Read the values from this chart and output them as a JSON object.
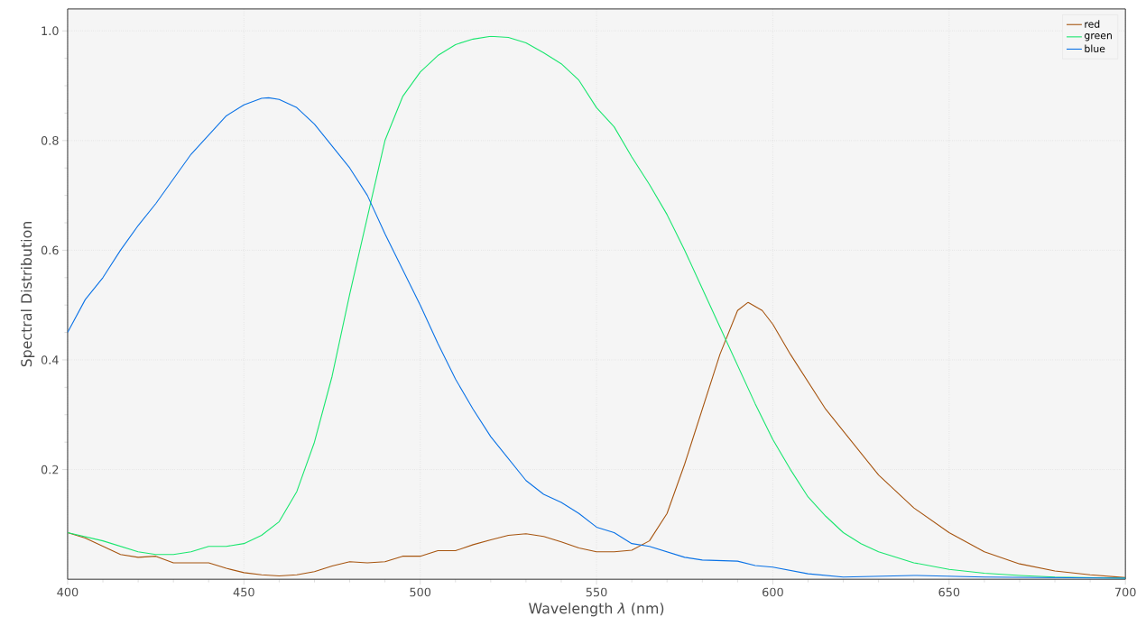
{
  "chart_data": {
    "type": "line",
    "xlabel": "Wavelength *λ* (nm)",
    "ylabel": "Spectral Distribution",
    "xlim": [
      400,
      700
    ],
    "ylim": [
      0,
      1.04
    ],
    "xticks": [
      400,
      450,
      500,
      550,
      600,
      650,
      700
    ],
    "yticks": [
      0.2,
      0.4,
      0.6,
      0.8,
      {
        "value": 1,
        "label": "1.0"
      }
    ],
    "grid": true,
    "legend": "top right",
    "series": [
      {
        "name": "red",
        "color": "#a6540f",
        "x": [
          400,
          405,
          410,
          415,
          420,
          425,
          430,
          435,
          440,
          445,
          450,
          455,
          460,
          465,
          470,
          475,
          480,
          485,
          490,
          495,
          500,
          505,
          510,
          515,
          520,
          525,
          530,
          535,
          540,
          545,
          550,
          555,
          560,
          565,
          570,
          575,
          580,
          585,
          590,
          593,
          597,
          600,
          605,
          610,
          615,
          620,
          625,
          630,
          640,
          650,
          660,
          670,
          680,
          690,
          700
        ],
        "values": [
          0.085,
          0.075,
          0.06,
          0.045,
          0.04,
          0.042,
          0.03,
          0.03,
          0.03,
          0.02,
          0.012,
          0.008,
          0.006,
          0.008,
          0.014,
          0.024,
          0.032,
          0.03,
          0.032,
          0.042,
          0.042,
          0.052,
          0.052,
          0.063,
          0.072,
          0.08,
          0.083,
          0.078,
          0.068,
          0.057,
          0.05,
          0.05,
          0.053,
          0.07,
          0.12,
          0.21,
          0.31,
          0.41,
          0.49,
          0.505,
          0.49,
          0.465,
          0.41,
          0.36,
          0.31,
          0.27,
          0.23,
          0.19,
          0.13,
          0.085,
          0.05,
          0.028,
          0.015,
          0.008,
          0.003
        ]
      },
      {
        "name": "green",
        "color": "#19e66e",
        "x": [
          400,
          410,
          420,
          425,
          430,
          435,
          440,
          445,
          450,
          455,
          460,
          465,
          470,
          475,
          480,
          485,
          490,
          495,
          500,
          505,
          510,
          515,
          520,
          525,
          530,
          535,
          540,
          545,
          550,
          555,
          560,
          565,
          570,
          575,
          580,
          585,
          590,
          595,
          600,
          605,
          610,
          615,
          620,
          625,
          630,
          640,
          650,
          660,
          670,
          680,
          700
        ],
        "values": [
          0.085,
          0.07,
          0.05,
          0.045,
          0.045,
          0.05,
          0.06,
          0.06,
          0.065,
          0.08,
          0.105,
          0.16,
          0.25,
          0.37,
          0.52,
          0.66,
          0.8,
          0.88,
          0.925,
          0.955,
          0.975,
          0.985,
          0.99,
          0.988,
          0.978,
          0.96,
          0.94,
          0.91,
          0.86,
          0.825,
          0.77,
          0.72,
          0.665,
          0.6,
          0.53,
          0.46,
          0.39,
          0.32,
          0.255,
          0.2,
          0.15,
          0.115,
          0.085,
          0.065,
          0.05,
          0.03,
          0.018,
          0.011,
          0.007,
          0.004,
          0.002
        ]
      },
      {
        "name": "blue",
        "color": "#0a72e6",
        "x": [
          400,
          405,
          410,
          415,
          420,
          425,
          430,
          435,
          440,
          445,
          450,
          455,
          457,
          460,
          465,
          470,
          475,
          480,
          485,
          490,
          495,
          500,
          505,
          510,
          515,
          520,
          525,
          530,
          535,
          540,
          545,
          550,
          555,
          560,
          565,
          570,
          575,
          580,
          590,
          595,
          600,
          610,
          620,
          640,
          660,
          700
        ],
        "values": [
          0.45,
          0.51,
          0.55,
          0.6,
          0.645,
          0.685,
          0.73,
          0.775,
          0.81,
          0.845,
          0.865,
          0.877,
          0.878,
          0.875,
          0.86,
          0.83,
          0.79,
          0.75,
          0.7,
          0.63,
          0.565,
          0.5,
          0.43,
          0.365,
          0.31,
          0.26,
          0.22,
          0.18,
          0.155,
          0.14,
          0.12,
          0.095,
          0.085,
          0.065,
          0.06,
          0.05,
          0.04,
          0.035,
          0.033,
          0.025,
          0.022,
          0.01,
          0.004,
          0.007,
          0.004,
          0.002
        ]
      }
    ]
  }
}
